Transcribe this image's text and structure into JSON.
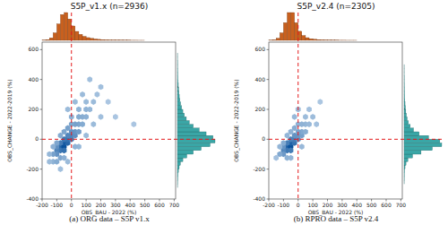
{
  "chart_data": [
    {
      "type": "scatter",
      "title": "S5P_v1.x (n=2936)",
      "caption": "(a) ORG data – S5P v1.x",
      "x_label": "OBS_BAU - 2022 (%)",
      "y_label": "OBS_CHANGE - 2022-2019 (%)",
      "xlim": [
        -200,
        710
      ],
      "ylim": [
        -400,
        650
      ],
      "xticks": [
        -200,
        -100,
        0,
        100,
        200,
        300,
        400,
        500,
        600,
        700
      ],
      "yticks": [
        -400,
        -200,
        0,
        200,
        400,
        600
      ],
      "grid": false,
      "marker": "hexagon",
      "ref_lines": {
        "x": 0,
        "y": 0,
        "color": "#e41a1c",
        "line_style": "dashed"
      },
      "hexbin": {
        "color": "#08519c",
        "x": [
          -75,
          -50,
          -50,
          -25,
          -25,
          -75,
          -100,
          -100,
          -50,
          0,
          0,
          -25,
          25,
          25,
          0,
          -50,
          -75,
          -125,
          -100,
          50,
          50,
          25,
          0,
          75,
          75,
          50,
          100,
          100,
          125,
          150,
          100,
          50,
          0,
          -25,
          -50,
          -75,
          -100,
          -125,
          -150,
          -125,
          -100,
          -75,
          -50,
          -150,
          175,
          200,
          125,
          75,
          25,
          -25,
          250,
          300,
          425,
          150,
          200,
          -75,
          -25,
          50,
          100,
          25
        ],
        "y": [
          -50,
          -50,
          -25,
          -25,
          0,
          -75,
          -75,
          -100,
          -75,
          0,
          25,
          25,
          25,
          50,
          50,
          0,
          -25,
          -100,
          -50,
          50,
          100,
          100,
          100,
          100,
          150,
          150,
          150,
          200,
          200,
          250,
          250,
          200,
          150,
          75,
          50,
          25,
          -25,
          -50,
          -100,
          -150,
          -150,
          -125,
          -125,
          -150,
          300,
          350,
          400,
          300,
          250,
          200,
          250,
          150,
          100,
          100,
          150,
          -200,
          -150,
          -50,
          25,
          -50
        ],
        "counts": [
          60,
          80,
          70,
          55,
          45,
          40,
          30,
          20,
          45,
          35,
          30,
          28,
          22,
          18,
          20,
          40,
          35,
          12,
          22,
          14,
          10,
          12,
          10,
          8,
          7,
          8,
          6,
          5,
          4,
          3,
          3,
          5,
          6,
          12,
          10,
          8,
          10,
          6,
          4,
          5,
          8,
          10,
          6,
          3,
          2,
          2,
          2,
          3,
          3,
          3,
          1,
          1,
          1,
          3,
          2,
          2,
          3,
          4,
          3,
          5
        ]
      },
      "x_hist": {
        "color": "#c8601e",
        "bins": [
          -200,
          -175,
          -150,
          -125,
          -100,
          -75,
          -50,
          -25,
          0,
          25,
          50,
          75,
          100,
          125,
          150,
          175,
          200,
          225,
          250,
          275,
          300,
          325,
          350,
          375,
          400,
          425,
          450,
          475,
          500,
          525,
          550,
          575,
          600,
          625,
          650,
          675,
          700
        ],
        "counts": [
          5,
          15,
          50,
          150,
          330,
          520,
          560,
          430,
          290,
          180,
          120,
          80,
          55,
          40,
          28,
          20,
          14,
          10,
          7,
          6,
          5,
          4,
          3,
          3,
          2,
          2,
          1,
          1,
          0,
          0,
          0,
          0,
          0,
          0,
          0,
          0
        ]
      },
      "y_hist": {
        "color": "#3aa6a6",
        "bins": [
          -400,
          -375,
          -350,
          -325,
          -300,
          -275,
          -250,
          -225,
          -200,
          -175,
          -150,
          -125,
          -100,
          -75,
          -50,
          -25,
          0,
          25,
          50,
          75,
          100,
          125,
          150,
          175,
          200,
          225,
          250,
          275,
          300,
          325,
          350,
          375,
          400,
          425,
          450,
          475,
          500,
          525,
          550,
          575,
          600
        ],
        "counts": [
          0,
          0,
          0,
          1,
          2,
          4,
          6,
          10,
          18,
          30,
          55,
          95,
          160,
          240,
          330,
          380,
          360,
          290,
          220,
          160,
          120,
          90,
          70,
          55,
          42,
          32,
          25,
          19,
          15,
          12,
          9,
          7,
          5,
          4,
          3,
          2,
          2,
          1,
          1,
          0
        ]
      }
    },
    {
      "type": "scatter",
      "title": "S5P_v2.4 (n=2305)",
      "caption": "(b) RPRO data – S5P v2.4",
      "x_label": "OBS_BAU - 2022 (%)",
      "y_label": "OBS_CHANGE - 2022-2019 (%)",
      "xlim": [
        -200,
        710
      ],
      "ylim": [
        -400,
        650
      ],
      "xticks": [
        -200,
        -100,
        0,
        100,
        200,
        300,
        400,
        500,
        600,
        700
      ],
      "yticks": [
        -400,
        -200,
        0,
        200,
        400,
        600
      ],
      "grid": false,
      "marker": "hexagon",
      "ref_lines": {
        "x": 0,
        "y": 0,
        "color": "#e41a1c",
        "line_style": "dashed"
      },
      "hexbin": {
        "color": "#08519c",
        "x": [
          -75,
          -50,
          -50,
          -25,
          -25,
          -75,
          -100,
          -100,
          -50,
          0,
          0,
          -25,
          25,
          25,
          0,
          -50,
          -75,
          -125,
          -100,
          50,
          50,
          25,
          0,
          75,
          -25,
          -50,
          -75,
          -100,
          -125,
          -75,
          -50,
          25,
          100,
          50,
          150,
          -25,
          0,
          75,
          -150,
          125
        ],
        "y": [
          -50,
          -50,
          -25,
          -25,
          0,
          -75,
          -75,
          -100,
          -75,
          0,
          25,
          25,
          25,
          50,
          50,
          0,
          -25,
          -100,
          -50,
          50,
          100,
          100,
          100,
          100,
          75,
          50,
          25,
          -25,
          -50,
          -125,
          -125,
          -50,
          150,
          150,
          250,
          150,
          200,
          200,
          -125,
          100
        ],
        "counts": [
          75,
          90,
          70,
          50,
          40,
          45,
          30,
          18,
          40,
          25,
          20,
          22,
          14,
          10,
          12,
          35,
          40,
          10,
          22,
          8,
          5,
          6,
          6,
          4,
          8,
          6,
          5,
          9,
          5,
          6,
          5,
          4,
          3,
          3,
          1,
          4,
          3,
          2,
          2,
          2
        ]
      },
      "x_hist": {
        "color": "#c8601e",
        "bins": [
          -200,
          -175,
          -150,
          -125,
          -100,
          -75,
          -50,
          -25,
          0,
          25,
          50,
          75,
          100,
          125,
          150,
          175,
          200,
          225,
          250,
          275,
          300,
          325,
          350,
          375,
          400,
          425,
          450,
          475,
          500,
          525,
          550,
          575,
          600,
          625,
          650,
          675,
          700
        ],
        "counts": [
          3,
          10,
          40,
          140,
          330,
          520,
          520,
          330,
          170,
          90,
          50,
          30,
          20,
          14,
          10,
          7,
          5,
          4,
          3,
          2,
          2,
          1,
          1,
          1,
          0,
          0,
          0,
          0,
          0,
          0,
          0,
          0,
          0,
          0,
          0,
          0
        ]
      },
      "y_hist": {
        "color": "#3aa6a6",
        "bins": [
          -400,
          -375,
          -350,
          -325,
          -300,
          -275,
          -250,
          -225,
          -200,
          -175,
          -150,
          -125,
          -100,
          -75,
          -50,
          -25,
          0,
          25,
          50,
          75,
          100,
          125,
          150,
          175,
          200,
          225,
          250,
          275,
          300,
          325,
          350,
          375,
          400,
          425,
          450,
          475,
          500,
          525,
          550,
          575,
          600
        ],
        "counts": [
          0,
          0,
          0,
          0,
          1,
          2,
          3,
          5,
          10,
          20,
          40,
          90,
          180,
          300,
          400,
          380,
          260,
          160,
          100,
          65,
          45,
          32,
          24,
          18,
          14,
          10,
          8,
          6,
          5,
          4,
          3,
          2,
          2,
          1,
          1,
          1,
          0,
          0,
          0,
          0
        ]
      }
    }
  ]
}
